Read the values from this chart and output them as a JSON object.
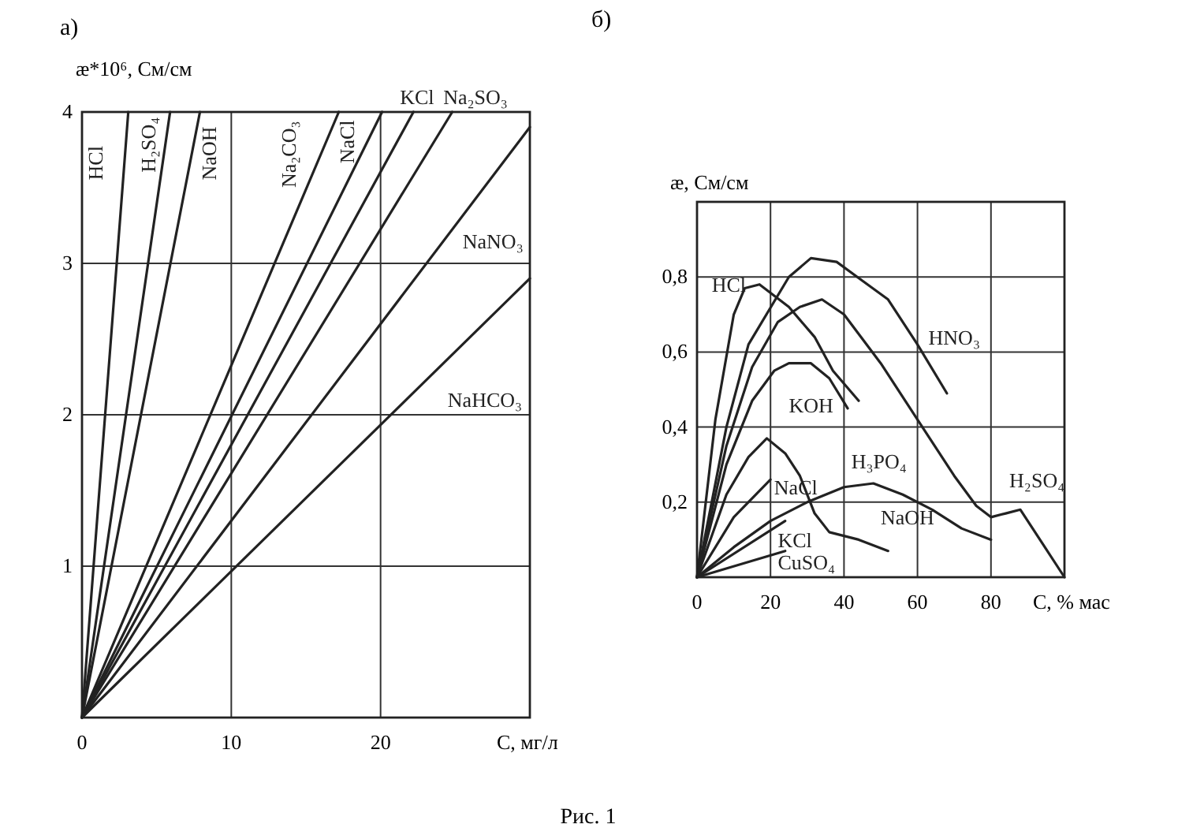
{
  "chart_data": [
    {
      "type": "line",
      "title": "а)",
      "ylabel": "æ*10⁶, См/см",
      "xlabel": "С, мг/л",
      "annotations": [
        "Рис. 1"
      ],
      "xlim": [
        0,
        30
      ],
      "ylim": [
        0,
        4
      ],
      "xticks": [
        0,
        10,
        20
      ],
      "yticks": [
        1,
        2,
        3,
        4
      ],
      "grid": true,
      "series": [
        {
          "name": "HCl",
          "color": "#222222",
          "x": [
            0,
            3.1
          ],
          "values": [
            0,
            4
          ]
        },
        {
          "name": "H₂SO₄",
          "color": "#222222",
          "x": [
            0,
            5.9
          ],
          "values": [
            0,
            4
          ]
        },
        {
          "name": "NaOH",
          "color": "#222222",
          "x": [
            0,
            7.9
          ],
          "values": [
            0,
            4
          ]
        },
        {
          "name": "Na₂CO₃",
          "color": "#222222",
          "x": [
            0,
            17.2
          ],
          "values": [
            0,
            4
          ]
        },
        {
          "name": "NaCl",
          "color": "#222222",
          "x": [
            0,
            20.1
          ],
          "values": [
            0,
            4
          ]
        },
        {
          "name": "KCl",
          "color": "#222222",
          "x": [
            0,
            22.2
          ],
          "values": [
            0,
            4
          ]
        },
        {
          "name": "Na₂SO₃",
          "color": "#222222",
          "x": [
            0,
            24.8
          ],
          "values": [
            0,
            4
          ]
        },
        {
          "name": "NaNO₃",
          "color": "#222222",
          "x": [
            0,
            30
          ],
          "values": [
            0,
            3.9
          ]
        },
        {
          "name": "NaHCO₃",
          "color": "#222222",
          "x": [
            0,
            30
          ],
          "values": [
            0,
            2.9
          ]
        }
      ]
    },
    {
      "type": "line",
      "title": "б)",
      "ylabel": "æ, См/см",
      "xlabel": "С, % мас",
      "xlim": [
        0,
        100
      ],
      "ylim": [
        0,
        1
      ],
      "xticks": [
        0,
        20,
        40,
        60,
        80
      ],
      "yticks": [
        {
          "value": 0.2,
          "label": "0,2"
        },
        {
          "value": 0.4,
          "label": "0,4"
        },
        {
          "value": 0.6,
          "label": "0,6"
        },
        {
          "value": 0.8,
          "label": "0,8"
        }
      ],
      "grid": true,
      "series": [
        {
          "name": "HCl",
          "color": "#222222",
          "x": [
            0,
            5,
            10,
            13,
            17,
            25,
            32,
            37,
            44
          ],
          "values": [
            0,
            0.42,
            0.7,
            0.77,
            0.78,
            0.72,
            0.64,
            0.55,
            0.47
          ]
        },
        {
          "name": "HNO₃",
          "color": "#222222",
          "x": [
            0,
            8,
            14,
            25,
            31,
            38,
            45,
            52,
            60,
            68
          ],
          "values": [
            0,
            0.4,
            0.62,
            0.8,
            0.85,
            0.84,
            0.79,
            0.74,
            0.62,
            0.49
          ]
        },
        {
          "name": "H₂SO₄",
          "color": "#222222",
          "x": [
            0,
            8,
            15,
            22,
            28,
            34,
            40,
            50,
            60,
            70,
            76,
            80,
            84,
            88,
            94,
            100
          ],
          "values": [
            0,
            0.35,
            0.56,
            0.68,
            0.72,
            0.74,
            0.7,
            0.57,
            0.42,
            0.27,
            0.19,
            0.16,
            0.17,
            0.18,
            0.09,
            0
          ]
        },
        {
          "name": "KOH",
          "color": "#222222",
          "x": [
            0,
            8,
            15,
            21,
            25,
            31,
            36,
            41
          ],
          "values": [
            0,
            0.3,
            0.47,
            0.55,
            0.57,
            0.57,
            0.53,
            0.45
          ]
        },
        {
          "name": "NaCl",
          "color": "#222222",
          "x": [
            0,
            10,
            20
          ],
          "values": [
            0,
            0.16,
            0.26
          ]
        },
        {
          "name": "H₃PO₄",
          "color": "#222222",
          "x": [
            0,
            10,
            20,
            30,
            40,
            48,
            56,
            64,
            72,
            80
          ],
          "values": [
            0,
            0.08,
            0.15,
            0.2,
            0.24,
            0.25,
            0.22,
            0.18,
            0.13,
            0.1
          ]
        },
        {
          "name": "NaOH",
          "color": "#222222",
          "x": [
            0,
            8,
            14,
            19,
            24,
            28,
            32,
            36,
            44,
            52
          ],
          "values": [
            0,
            0.22,
            0.32,
            0.37,
            0.33,
            0.27,
            0.17,
            0.12,
            0.1,
            0.07
          ]
        },
        {
          "name": "KCl",
          "color": "#222222",
          "x": [
            0,
            24
          ],
          "values": [
            0,
            0.15
          ]
        },
        {
          "name": "CuSO₄",
          "color": "#222222",
          "x": [
            0,
            24
          ],
          "values": [
            0,
            0.07
          ]
        }
      ]
    }
  ]
}
